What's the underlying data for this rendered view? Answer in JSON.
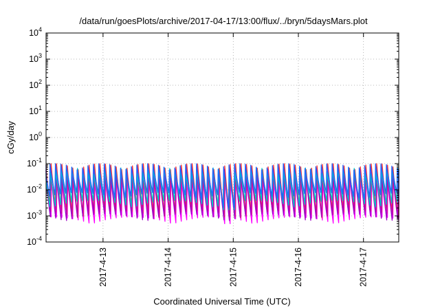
{
  "chart_data": {
    "type": "line",
    "title": "/data/run/goesPlots/archive/2017-04-17/13:00/flux/../bryn/5daysMars.plot",
    "xlabel": "Coordinated Universal Time (UTC)",
    "ylabel": "cGy/day",
    "yscale": "log",
    "ylim": [
      0.0001,
      10000
    ],
    "ytick_base": "10",
    "ytick_exponents": [
      "-4",
      "-3",
      "-2",
      "-1",
      "0",
      "1",
      "2",
      "3",
      "4"
    ],
    "xlim": [
      "2017-04-12 03:00",
      "2017-04-17 13:00"
    ],
    "xtick_labels": [
      "2017-4-13",
      "2017-4-14",
      "2017-4-15",
      "2017-4-16",
      "2017-4-17"
    ],
    "grid": true,
    "pattern": {
      "description_period_hours": 2.0,
      "peak_value": 0.1,
      "trough_value": 0.001,
      "anomaly": {
        "date": "2017-04-14",
        "trough_value": 0.0005
      }
    },
    "series": [
      {
        "color": "#ff00ff",
        "peak": 0.032,
        "trough": 0.0007
      },
      {
        "color": "#ff3030",
        "peak": 0.1,
        "trough": 0.0012
      },
      {
        "color": "#a000c8",
        "peak": 0.06,
        "trough": 0.0009
      },
      {
        "color": "#00c8c8",
        "peak": 0.07,
        "trough": 0.003
      },
      {
        "color": "#2060ff",
        "peak": 0.1,
        "trough": 0.006
      }
    ]
  }
}
